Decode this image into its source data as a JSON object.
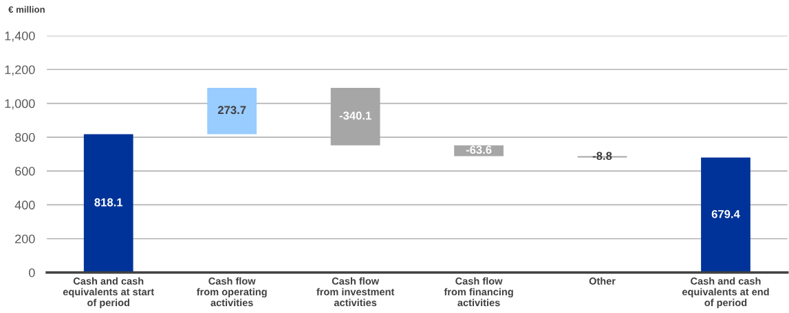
{
  "chart_data": {
    "type": "bar",
    "ylabel": "€ million",
    "categories": [
      "Cash and cash\nequivalents at start\nof period",
      "Cash flow\nfrom operating\nactivities",
      "Cash flow\nfrom investment\nactivities",
      "Cash flow\nfrom financing\nactivities",
      "Other",
      "Cash and cash\nequivalents at end\nof period"
    ],
    "values": [
      818.1,
      273.7,
      -340.1,
      -63.6,
      -8.8,
      679.4
    ],
    "base": [
      0,
      818.1,
      1091.8,
      751.7,
      688.1,
      0
    ],
    "colors": [
      "#003399",
      "#99ccff",
      "#a6a6a6",
      "#a6a6a6",
      "#a6a6a6",
      "#003399"
    ],
    "ylim": [
      0,
      1400
    ],
    "yticks": [
      0,
      200,
      400,
      600,
      800,
      {
        "value": 1000,
        "label": "1,000"
      },
      {
        "value": 1200,
        "label": "1,200"
      },
      {
        "value": 1400,
        "label": "1,400"
      }
    ],
    "grid": "y",
    "data_labels": true
  }
}
